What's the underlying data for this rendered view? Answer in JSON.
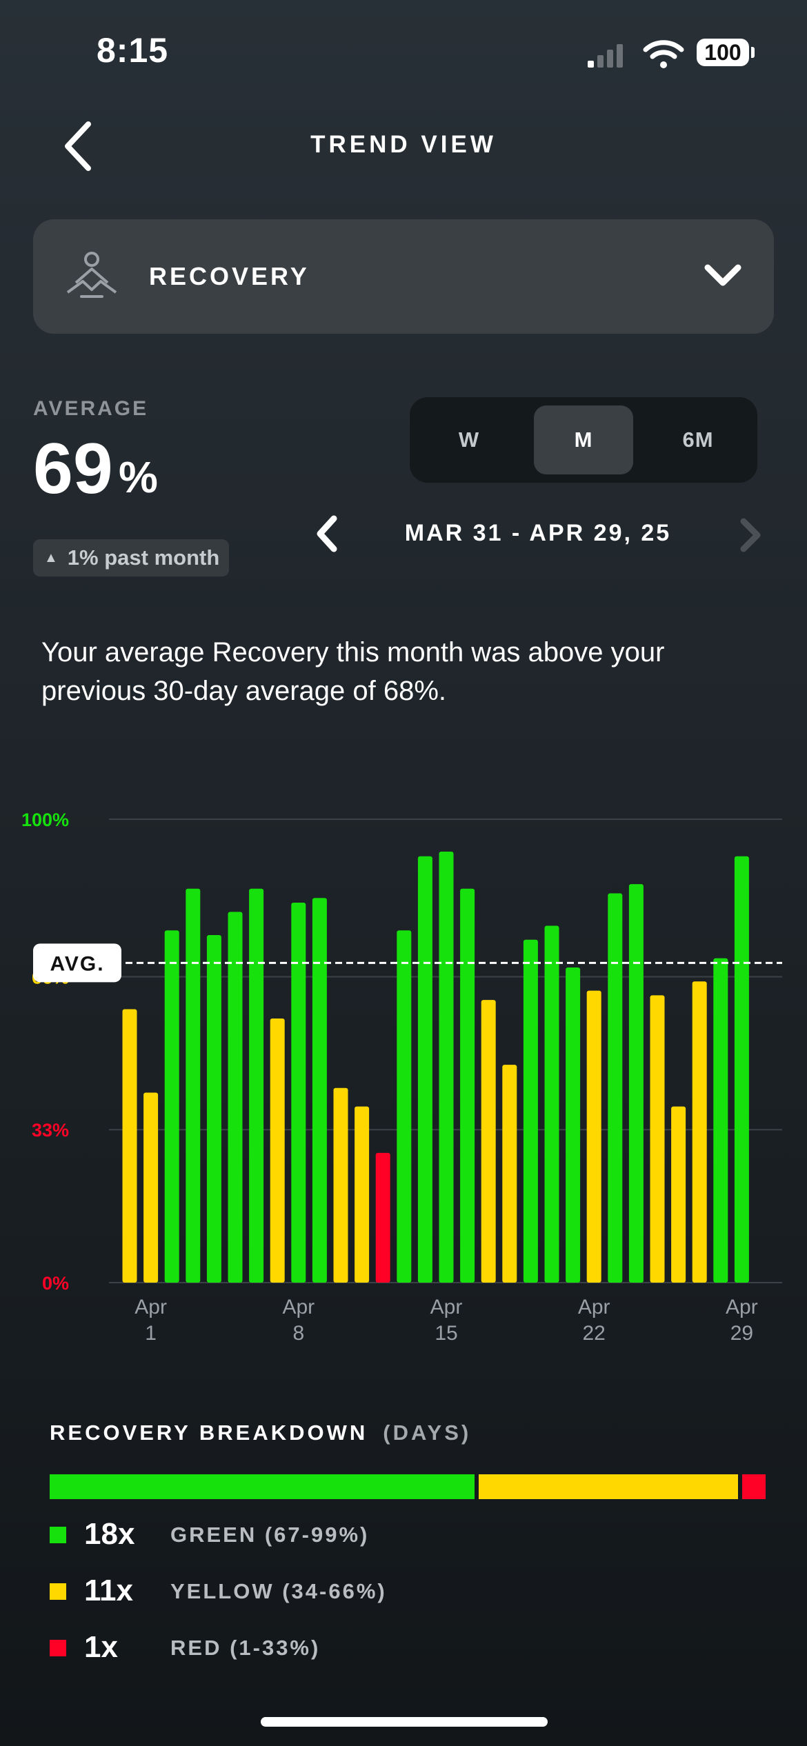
{
  "status_bar": {
    "time": "8:15",
    "battery": "100"
  },
  "header": {
    "title": "TREND VIEW"
  },
  "metric_selector": {
    "label": "RECOVERY"
  },
  "average": {
    "label": "AVERAGE",
    "value": "69",
    "unit": "%",
    "change": "1% past month"
  },
  "period_toggle": {
    "options": [
      "W",
      "M",
      "6M"
    ],
    "selected": "M"
  },
  "date_range": "MAR 31 - APR 29, 25",
  "insight": "Your average Recovery this month was above your previous 30-day average of 68%.",
  "colors": {
    "green": "#16e10c",
    "yellow": "#ffd800",
    "red": "#ff0026",
    "background": "#1e2429"
  },
  "chart_data": {
    "type": "bar",
    "ylim": [
      0,
      100
    ],
    "y_ticks": [
      "100%",
      "66%",
      "33%",
      "0%"
    ],
    "average_label": "AVG.",
    "average": 69,
    "x_tick_labels": [
      {
        "month": "Apr",
        "day": "1",
        "index": 1
      },
      {
        "month": "Apr",
        "day": "8",
        "index": 8
      },
      {
        "month": "Apr",
        "day": "15",
        "index": 15
      },
      {
        "month": "Apr",
        "day": "22",
        "index": 22
      },
      {
        "month": "Apr",
        "day": "29",
        "index": 29
      }
    ],
    "categories": [
      "Mar 31",
      "Apr 1",
      "Apr 2",
      "Apr 3",
      "Apr 4",
      "Apr 5",
      "Apr 6",
      "Apr 7",
      "Apr 8",
      "Apr 9",
      "Apr 10",
      "Apr 11",
      "Apr 12",
      "Apr 13",
      "Apr 14",
      "Apr 15",
      "Apr 16",
      "Apr 17",
      "Apr 18",
      "Apr 19",
      "Apr 20",
      "Apr 21",
      "Apr 22",
      "Apr 23",
      "Apr 24",
      "Apr 25",
      "Apr 26",
      "Apr 27",
      "Apr 28",
      "Apr 29"
    ],
    "values": [
      59,
      41,
      76,
      85,
      75,
      80,
      85,
      57,
      82,
      83,
      42,
      38,
      28,
      76,
      92,
      93,
      85,
      61,
      47,
      74,
      77,
      68,
      63,
      84,
      86,
      62,
      38,
      65,
      70,
      92
    ]
  },
  "breakdown": {
    "title": "RECOVERY BREAKDOWN",
    "unit": "(DAYS)",
    "rows": [
      {
        "count": "18x",
        "label": "GREEN (67-99%)",
        "days": 18
      },
      {
        "count": "11x",
        "label": "YELLOW (34-66%)",
        "days": 11
      },
      {
        "count": "1x",
        "label": "RED (1-33%)",
        "days": 1
      }
    ]
  }
}
